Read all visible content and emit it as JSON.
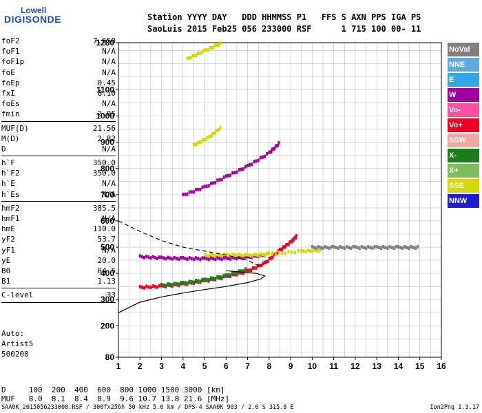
{
  "logo": {
    "top": "Lowell",
    "bottom": "DIGISONDE"
  },
  "header": {
    "line1": "Station YYYY DAY   DDD HHMMSS P1   FFS S AXN PPS IGA PS",
    "line2": "SaoLuis 2015 Feb25 056 233000 RSF      1 715 100 00- 11"
  },
  "params": {
    "g1": [
      {
        "label": "foF2",
        "value": "7.650"
      },
      {
        "label": "foF1",
        "value": "N/A"
      },
      {
        "label": "foF1p",
        "value": "N/A"
      },
      {
        "label": "foE",
        "value": "N/A"
      },
      {
        "label": "foEp",
        "value": "0.45"
      },
      {
        "label": "fxI",
        "value": "8.10"
      },
      {
        "label": "foEs",
        "value": "N/A"
      },
      {
        "label": "fmin",
        "value": "2.05"
      }
    ],
    "g2": [
      {
        "label": "MUF(D)",
        "value": "21.56"
      },
      {
        "label": "M(D)",
        "value": "2.82"
      },
      {
        "label": "D",
        "value": "N/A"
      }
    ],
    "g3": [
      {
        "label": "h`F",
        "value": "350.0"
      },
      {
        "label": "h`F2",
        "value": "350.0"
      },
      {
        "label": "h`E",
        "value": "N/A"
      },
      {
        "label": "h`Es",
        "value": "N/A"
      }
    ],
    "g4": [
      {
        "label": "hmF2",
        "value": "385.5"
      },
      {
        "label": "hmF1",
        "value": "N/A"
      },
      {
        "label": "hmE",
        "value": "110.0"
      },
      {
        "label": "yF2",
        "value": "53.7"
      },
      {
        "label": "yF1",
        "value": "N/A"
      },
      {
        "label": "yE",
        "value": "20.0"
      },
      {
        "label": "B0",
        "value": "64.5"
      },
      {
        "label": "B1",
        "value": "1.13"
      }
    ],
    "g5": [
      {
        "label": "C-level",
        "value": "33"
      }
    ]
  },
  "auto": {
    "line1": "Auto:",
    "line2": "Artist5",
    "line3": "500200"
  },
  "muf_table": {
    "d_row": "D     100  200  400  600  800 1000 1500 3000 [km]",
    "muf_row": "MUF   8.0  8.1  8.4  8.9  9.6 10.7 13.8 21.6 [MHz]"
  },
  "footer": "SAA0K_2015056233000.RSF / 300fx256h 50 kHz 5.0 km / DPS-4 SAA0K 903 / 2.6 S 315.8 E",
  "version": "Ion2Png 1.3.17",
  "legend": [
    {
      "label": "NoVal",
      "color": "#7f7f7f"
    },
    {
      "label": "NNE",
      "color": "#5fa8e0"
    },
    {
      "label": "E",
      "color": "#33a6e8"
    },
    {
      "label": "W",
      "color": "#a0009f"
    },
    {
      "label": "Vo-",
      "color": "#ff4fa0"
    },
    {
      "label": "Vo+",
      "color": "#ee0022"
    },
    {
      "label": "SSW",
      "color": "#f0a6a0"
    },
    {
      "label": "X-",
      "color": "#1a7d1a"
    },
    {
      "label": "X+",
      "color": "#7dbd5a"
    },
    {
      "label": "SSE",
      "color": "#d7d700"
    },
    {
      "label": "NNW",
      "color": "#1f1fd0"
    }
  ],
  "chart_data": {
    "type": "scatter",
    "xlim": [
      1,
      16
    ],
    "ylim": [
      80,
      1280
    ],
    "x_ticks": [
      1,
      2,
      3,
      4,
      5,
      6,
      7,
      8,
      9,
      10,
      11,
      12,
      13,
      14,
      15,
      16
    ],
    "y_ticks": [
      80,
      200,
      300,
      400,
      500,
      600,
      700,
      800,
      900,
      1000,
      1100,
      1280
    ],
    "grid": true,
    "legend_position": "right",
    "traces": [
      {
        "name": "Vo+",
        "color": "#ee0022",
        "points": [
          [
            2,
            348
          ],
          [
            3,
            352
          ],
          [
            4,
            360
          ],
          [
            5,
            372
          ],
          [
            6,
            388
          ],
          [
            7,
            410
          ],
          [
            7.8,
            440
          ],
          [
            8.5,
            490
          ],
          [
            9,
            520
          ],
          [
            9.3,
            545
          ]
        ]
      },
      {
        "name": "W",
        "color": "#a0009f",
        "points": [
          [
            2,
            465
          ],
          [
            3,
            460
          ],
          [
            4,
            458
          ],
          [
            5,
            457
          ],
          [
            6,
            458
          ],
          [
            7,
            462
          ],
          [
            8,
            475
          ]
        ]
      },
      {
        "name": "SSE",
        "color": "#d7d700",
        "points": [
          [
            5,
            470
          ],
          [
            6,
            472
          ],
          [
            7,
            470
          ],
          [
            8,
            475
          ],
          [
            9.5,
            485
          ],
          [
            10.5,
            490
          ]
        ]
      },
      {
        "name": "X-",
        "color": "#1a7d1a",
        "points": [
          [
            3,
            356
          ],
          [
            4,
            364
          ],
          [
            5,
            376
          ],
          [
            6,
            392
          ],
          [
            7,
            418
          ]
        ]
      },
      {
        "name": "SSE",
        "color": "#d7d700",
        "points": [
          [
            4.2,
            1220
          ],
          [
            5,
            1250
          ],
          [
            5.8,
            1280
          ]
        ]
      },
      {
        "name": "SSE",
        "color": "#d7d700",
        "points": [
          [
            4.5,
            890
          ],
          [
            5.2,
            920
          ],
          [
            5.8,
            960
          ]
        ]
      },
      {
        "name": "W",
        "color": "#a0009f",
        "points": [
          [
            4,
            700
          ],
          [
            5,
            730
          ],
          [
            6,
            770
          ],
          [
            7,
            810
          ],
          [
            8,
            860
          ],
          [
            8.5,
            900
          ]
        ]
      },
      {
        "name": "NoVal",
        "color": "#7f7f7f",
        "points": [
          [
            10,
            500
          ],
          [
            11,
            500
          ],
          [
            12,
            500
          ],
          [
            13,
            500
          ],
          [
            14,
            500
          ],
          [
            15,
            500
          ]
        ]
      }
    ],
    "profile_solid": [
      [
        1,
        250
      ],
      [
        2,
        290
      ],
      [
        3,
        310
      ],
      [
        4,
        325
      ],
      [
        5,
        338
      ],
      [
        6,
        350
      ],
      [
        7,
        365
      ],
      [
        7.6,
        378
      ],
      [
        7.8,
        390
      ],
      [
        7.4,
        400
      ],
      [
        6,
        410
      ]
    ],
    "profile_dashed": [
      [
        1,
        600
      ],
      [
        2,
        560
      ],
      [
        3,
        525
      ],
      [
        4,
        500
      ],
      [
        5,
        485
      ],
      [
        6,
        470
      ],
      [
        7,
        450
      ],
      [
        7.6,
        425
      ]
    ]
  }
}
